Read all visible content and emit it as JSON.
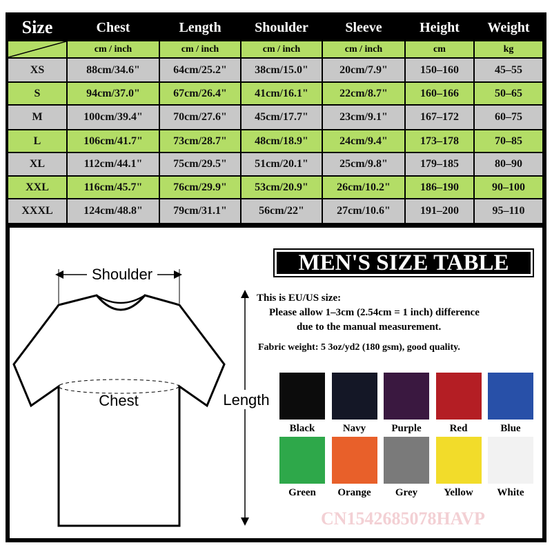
{
  "table": {
    "columns": [
      "Size",
      "Chest",
      "Length",
      "Shoulder",
      "Sleeve",
      "Height",
      "Weight"
    ],
    "units": [
      "cm / inch",
      "cm / inch",
      "cm / inch",
      "cm / inch",
      "cm",
      "kg"
    ],
    "rows": [
      [
        "XS",
        "88cm/34.6\"",
        "64cm/25.2\"",
        "38cm/15.0\"",
        "20cm/7.9\"",
        "150–160",
        "45–55"
      ],
      [
        "S",
        "94cm/37.0\"",
        "67cm/26.4\"",
        "41cm/16.1\"",
        "22cm/8.7\"",
        "160–166",
        "50–65"
      ],
      [
        "M",
        "100cm/39.4\"",
        "70cm/27.6\"",
        "45cm/17.7\"",
        "23cm/9.1\"",
        "167–172",
        "60–75"
      ],
      [
        "L",
        "106cm/41.7\"",
        "73cm/28.7\"",
        "48cm/18.9\"",
        "24cm/9.4\"",
        "173–178",
        "70–85"
      ],
      [
        "XL",
        "112cm/44.1\"",
        "75cm/29.5\"",
        "51cm/20.1\"",
        "25cm/9.8\"",
        "179–185",
        "80–90"
      ],
      [
        "XXL",
        "116cm/45.7\"",
        "76cm/29.9\"",
        "53cm/20.9\"",
        "26cm/10.2\"",
        "186–190",
        "90–100"
      ],
      [
        "XXXL",
        "124cm/48.8\"",
        "79cm/31.1\"",
        "56cm/22\"",
        "27cm/10.6\"",
        "191–200",
        "95–110"
      ]
    ]
  },
  "title": "MEN'S SIZE TABLE",
  "diagram": {
    "shoulder": "Shoulder",
    "chest": "Chest",
    "length": "Length"
  },
  "notes": [
    "This is EU/US size:",
    "Please allow 1–3cm (2.54cm = 1 inch) difference",
    "due to the manual measurement.",
    "Fabric weight: 5 3oz/yd2 (180 gsm), good quality."
  ],
  "colors": [
    {
      "name": "Black",
      "color": "#0c0c0c"
    },
    {
      "name": "Navy",
      "color": "#141726"
    },
    {
      "name": "Purple",
      "color": "#3a1840"
    },
    {
      "name": "Red",
      "color": "#b41e24"
    },
    {
      "name": "Blue",
      "color": "#2850a8"
    },
    {
      "name": "Green",
      "color": "#2ea84a"
    },
    {
      "name": "Orange",
      "color": "#e8602a"
    },
    {
      "name": "Grey",
      "color": "#7a7a7a"
    },
    {
      "name": "Yellow",
      "color": "#f2dc2a"
    },
    {
      "name": "White",
      "color": "#f2f2f2"
    }
  ],
  "watermark": "CN1542685078HAVP"
}
